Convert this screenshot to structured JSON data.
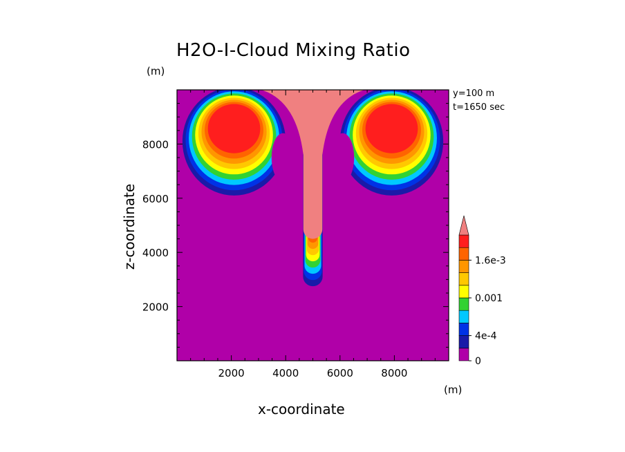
{
  "chart_data": {
    "type": "heatmap",
    "title": "H2O-I-Cloud Mixing Ratio",
    "xlabel": "x-coordinate",
    "ylabel": "z-coordinate",
    "x_unit": "(m)",
    "y_unit": "(m)",
    "xlim": [
      0,
      10000
    ],
    "ylim": [
      0,
      10000
    ],
    "x_ticks": [
      "2000",
      "4000",
      "6000",
      "8000"
    ],
    "y_ticks": [
      "2000",
      "4000",
      "6000",
      "8000"
    ],
    "annotations": [
      "y=100 m",
      "t=1650 sec"
    ],
    "colorbar": {
      "labels": [
        "0",
        "4e-4",
        "0.001",
        "1.6e-3"
      ],
      "colors": [
        "#b000a8",
        "#1a1aa8",
        "#0032e6",
        "#00c8ff",
        "#32d232",
        "#ffff00",
        "#ffc800",
        "#ff9600",
        "#ff6400",
        "#ff1e1e",
        "#f08080"
      ],
      "extend_top": true
    },
    "plot_colors": {
      "background": "#b000a8",
      "level_1": "#1a1aa8",
      "level_2": "#0032e6",
      "level_3": "#00c8ff",
      "level_4": "#32d232",
      "level_5": "#ffff00",
      "level_6": "#ffc800",
      "level_7": "#ff9600",
      "level_8": "#ff6400",
      "level_9": "#ff1e1e",
      "core": "#f08080"
    }
  }
}
